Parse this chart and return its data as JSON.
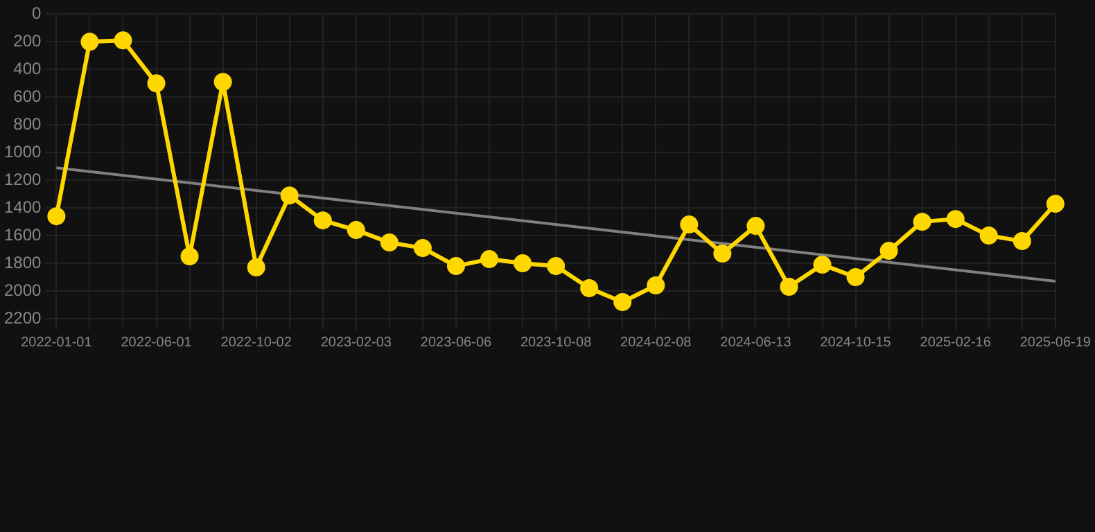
{
  "chart_data": {
    "type": "line",
    "categories": [
      "2022-01-01",
      null,
      null,
      "2022-06-01",
      null,
      null,
      "2022-10-02",
      null,
      null,
      "2023-02-03",
      null,
      null,
      "2023-06-06",
      null,
      null,
      "2023-10-08",
      null,
      null,
      "2024-02-08",
      null,
      null,
      "2024-06-13",
      null,
      null,
      "2024-10-15",
      null,
      null,
      "2025-02-16",
      null,
      null,
      "2025-06-19"
    ],
    "series": [
      {
        "color": "#ffd700",
        "marker": "circle",
        "values": [
          1460,
          200,
          190,
          500,
          1750,
          490,
          1830,
          1310,
          1490,
          1560,
          1650,
          1690,
          1820,
          1770,
          1800,
          1820,
          1980,
          2080,
          1960,
          1520,
          1730,
          1530,
          1970,
          1810,
          1900,
          1710,
          1500,
          1480,
          1600,
          1640,
          1370
        ]
      },
      {
        "color": "#808080",
        "marker": "none",
        "values": [
          1110,
          null,
          null,
          null,
          null,
          null,
          null,
          null,
          null,
          null,
          null,
          null,
          null,
          null,
          null,
          null,
          null,
          null,
          null,
          null,
          null,
          null,
          null,
          null,
          null,
          null,
          null,
          null,
          null,
          null,
          1930
        ]
      }
    ],
    "ylim": [
      2200,
      0
    ],
    "yticks": [
      0,
      200,
      400,
      600,
      800,
      1000,
      1200,
      1400,
      1600,
      1800,
      2000,
      2200
    ],
    "grid": true,
    "legend": false
  }
}
